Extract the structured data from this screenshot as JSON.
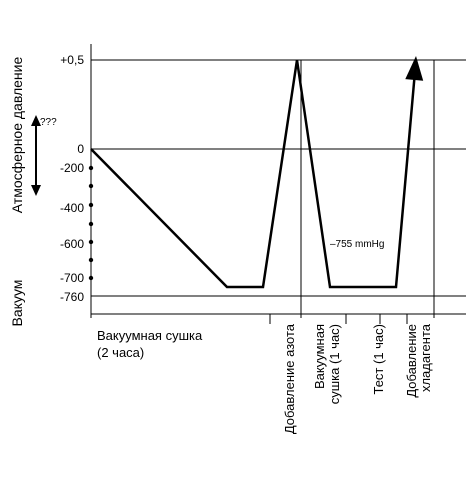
{
  "chart_data": {
    "type": "line",
    "y_axis_label_top": "Атмосферное давление",
    "y_axis_label_bottom": "Вакуум",
    "y_ticks": [
      "+0,5",
      "0",
      "-200",
      "-400",
      "-600",
      "-700",
      "-760"
    ],
    "atm_marker": "???",
    "annotation": "–755 mmHg",
    "phases": [
      {
        "label": "Вакуумная сушка",
        "label2": "(2 часа)"
      },
      {
        "label": "Добавление азота"
      },
      {
        "label": "Вакуумная",
        "label2": "сушка (1 час)"
      },
      {
        "label": "Тест  (1 час)"
      },
      {
        "label": "Добавление",
        "label2": "хладагента"
      }
    ],
    "series": [
      {
        "points": [
          {
            "x": 0,
            "y": 0
          },
          {
            "x": 1.36,
            "y": -740
          },
          {
            "x": 1.72,
            "y": -740
          },
          {
            "x": 2.06,
            "y": 0.5
          },
          {
            "x": 2.39,
            "y": -740
          },
          {
            "x": 3.05,
            "y": -740
          },
          {
            "x": 3.25,
            "y": 0.5
          }
        ]
      }
    ]
  }
}
